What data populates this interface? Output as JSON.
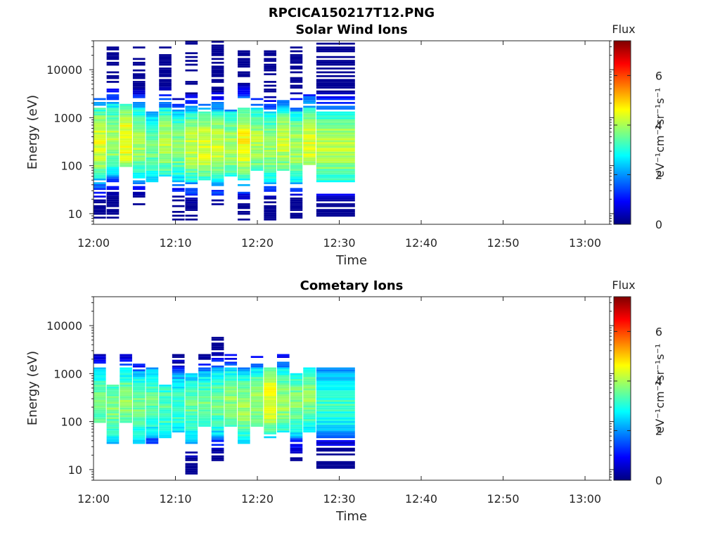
{
  "figure": {
    "suptitle": "RPCICA150217T12.PNG"
  },
  "colorbar": {
    "title": "Flux",
    "label": "eV⁻¹cm⁻²sr⁻¹s⁻¹",
    "range": [
      0,
      7.4
    ],
    "ticks": [
      0,
      2,
      4,
      6
    ],
    "colormap": "jet",
    "colors": [
      "#00007f",
      "#0000ff",
      "#007fff",
      "#00ffff",
      "#7fff7f",
      "#ffff00",
      "#ff7f00",
      "#ff0000",
      "#7f0000"
    ]
  },
  "chart_data": [
    {
      "type": "heatmap",
      "title": "Solar Wind Ions",
      "xlabel": "Time",
      "ylabel": "Energy (eV)",
      "xlim": [
        "12:00",
        "13:03"
      ],
      "ylim": [
        6,
        40000
      ],
      "yscale": "log",
      "xtick_labels": [
        "12:00",
        "12:10",
        "12:20",
        "12:30",
        "12:40",
        "12:50",
        "13:00"
      ],
      "ytick_values": [
        10,
        100,
        1000,
        10000
      ],
      "ytick_labels": [
        "10",
        "100",
        "1000",
        "10000"
      ],
      "time_columns": [
        {
          "start": "12:00",
          "end": "12:01.6",
          "emin": 8,
          "emax": 2500,
          "peak_energy": 300,
          "peak_flux": 4.4
        },
        {
          "start": "12:01.6",
          "end": "12:03.2",
          "emin": 8,
          "emax": 30000,
          "peak_energy": 350,
          "peak_flux": 4.0
        },
        {
          "start": "12:03.2",
          "end": "12:04.8",
          "emin": 90,
          "emax": 2000,
          "peak_energy": 350,
          "peak_flux": 4.6
        },
        {
          "start": "12:04.8",
          "end": "12:06.4",
          "emin": 15,
          "emax": 30000,
          "peak_energy": 300,
          "peak_flux": 4.0
        },
        {
          "start": "12:06.4",
          "end": "12:08",
          "emin": 40,
          "emax": 1500,
          "peak_energy": 250,
          "peak_flux": 3.6
        },
        {
          "start": "12:08",
          "end": "12:09.6",
          "emin": 60,
          "emax": 30000,
          "peak_energy": 300,
          "peak_flux": 4.1
        },
        {
          "start": "12:09.6",
          "end": "12:11.2",
          "emin": 7,
          "emax": 2500,
          "peak_energy": 250,
          "peak_flux": 3.8
        },
        {
          "start": "12:11.2",
          "end": "12:12.8",
          "emin": 7,
          "emax": 40000,
          "peak_energy": 250,
          "peak_flux": 4.2
        },
        {
          "start": "12:12.8",
          "end": "12:14.4",
          "emin": 50,
          "emax": 2000,
          "peak_energy": 250,
          "peak_flux": 4.4
        },
        {
          "start": "12:14.4",
          "end": "12:16",
          "emin": 15,
          "emax": 40000,
          "peak_energy": 250,
          "peak_flux": 4.3
        },
        {
          "start": "12:16",
          "end": "12:17.6",
          "emin": 60,
          "emax": 1500,
          "peak_energy": 250,
          "peak_flux": 4.0
        },
        {
          "start": "12:17.6",
          "end": "12:19.2",
          "emin": 7,
          "emax": 30000,
          "peak_energy": 300,
          "peak_flux": 4.6
        },
        {
          "start": "12:19.2",
          "end": "12:20.8",
          "emin": 80,
          "emax": 2500,
          "peak_energy": 300,
          "peak_flux": 4.1
        },
        {
          "start": "12:20.8",
          "end": "12:22.4",
          "emin": 7,
          "emax": 30000,
          "peak_energy": 250,
          "peak_flux": 3.9
        },
        {
          "start": "12:22.4",
          "end": "12:24",
          "emin": 80,
          "emax": 2500,
          "peak_energy": 300,
          "peak_flux": 4.2
        },
        {
          "start": "12:24",
          "end": "12:25.6",
          "emin": 7,
          "emax": 30000,
          "peak_energy": 250,
          "peak_flux": 4.0
        },
        {
          "start": "12:25.6",
          "end": "12:27.2",
          "emin": 100,
          "emax": 3000,
          "peak_energy": 300,
          "peak_flux": 4.4
        },
        {
          "start": "12:27.2",
          "end": "12:32",
          "emin": 8,
          "emax": 40000,
          "peak_energy": 250,
          "peak_flux": 4.2
        }
      ]
    },
    {
      "type": "heatmap",
      "title": "Cometary Ions",
      "xlabel": "Time",
      "ylabel": "Energy (eV)",
      "xlim": [
        "12:00",
        "13:03"
      ],
      "ylim": [
        6,
        40000
      ],
      "yscale": "log",
      "xtick_labels": [
        "12:00",
        "12:10",
        "12:20",
        "12:30",
        "12:40",
        "12:50",
        "13:00"
      ],
      "ytick_values": [
        10,
        100,
        1000,
        10000
      ],
      "ytick_labels": [
        "10",
        "100",
        "1000",
        "10000"
      ],
      "time_columns": [
        {
          "start": "12:00",
          "end": "12:01.6",
          "emin": 90,
          "emax": 2500,
          "peak_energy": 250,
          "peak_flux": 3.6
        },
        {
          "start": "12:01.6",
          "end": "12:03.2",
          "emin": 35,
          "emax": 600,
          "peak_energy": 200,
          "peak_flux": 3.7
        },
        {
          "start": "12:03.2",
          "end": "12:04.8",
          "emin": 90,
          "emax": 2500,
          "peak_energy": 250,
          "peak_flux": 3.8
        },
        {
          "start": "12:04.8",
          "end": "12:06.4",
          "emin": 35,
          "emax": 2000,
          "peak_energy": 200,
          "peak_flux": 3.6
        },
        {
          "start": "12:06.4",
          "end": "12:08",
          "emin": 35,
          "emax": 1300,
          "peak_energy": 250,
          "peak_flux": 3.5
        },
        {
          "start": "12:08",
          "end": "12:09.6",
          "emin": 45,
          "emax": 600,
          "peak_energy": 200,
          "peak_flux": 3.4
        },
        {
          "start": "12:09.6",
          "end": "12:11.2",
          "emin": 60,
          "emax": 2500,
          "peak_energy": 200,
          "peak_flux": 3.2
        },
        {
          "start": "12:11.2",
          "end": "12:12.8",
          "emin": 8,
          "emax": 1000,
          "peak_energy": 200,
          "peak_flux": 3.5
        },
        {
          "start": "12:12.8",
          "end": "12:14.4",
          "emin": 80,
          "emax": 2500,
          "peak_energy": 200,
          "peak_flux": 3.6
        },
        {
          "start": "12:14.4",
          "end": "12:16",
          "emin": 15,
          "emax": 7000,
          "peak_energy": 250,
          "peak_flux": 3.6
        },
        {
          "start": "12:16",
          "end": "12:17.6",
          "emin": 80,
          "emax": 2500,
          "peak_energy": 250,
          "peak_flux": 3.8
        },
        {
          "start": "12:17.6",
          "end": "12:19.2",
          "emin": 35,
          "emax": 1300,
          "peak_energy": 200,
          "peak_flux": 3.9
        },
        {
          "start": "12:19.2",
          "end": "12:20.8",
          "emin": 80,
          "emax": 2500,
          "peak_energy": 250,
          "peak_flux": 3.9
        },
        {
          "start": "12:20.8",
          "end": "12:22.4",
          "emin": 45,
          "emax": 1300,
          "peak_energy": 300,
          "peak_flux": 4.5
        },
        {
          "start": "12:22.4",
          "end": "12:24",
          "emin": 60,
          "emax": 2500,
          "peak_energy": 250,
          "peak_flux": 3.9
        },
        {
          "start": "12:24",
          "end": "12:25.6",
          "emin": 15,
          "emax": 1000,
          "peak_energy": 250,
          "peak_flux": 3.7
        },
        {
          "start": "12:25.6",
          "end": "12:27.2",
          "emin": 60,
          "emax": 1400,
          "peak_energy": 300,
          "peak_flux": 3.8
        },
        {
          "start": "12:27.2",
          "end": "12:32",
          "emin": 8,
          "emax": 1300,
          "peak_energy": 250,
          "peak_flux": 3.2
        }
      ]
    }
  ]
}
